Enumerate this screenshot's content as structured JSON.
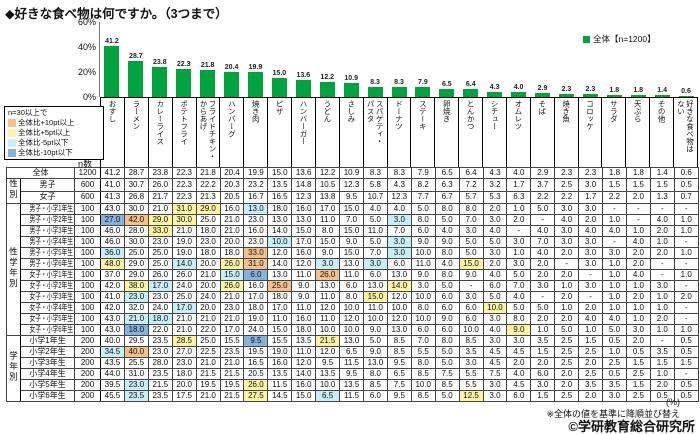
{
  "title": "◆好きな食べ物は何ですか。（3つまで）",
  "chart_data": {
    "type": "bar",
    "title": "好きな食べ物は何ですか。（3つまで）",
    "categories": [
      "おすし",
      "ラーメン",
      "カレーライス",
      "ポテトフライ",
      "フライドチキン・からあげ",
      "ハンバーグ",
      "焼き肉",
      "ピザ",
      "ハンバーガー",
      "うどん",
      "さしみ",
      "スパゲティ・パスタ",
      "ドーナツ",
      "ステーキ",
      "卵焼き",
      "とんかつ",
      "シチュー",
      "オムレツ",
      "そば",
      "焼き魚",
      "コロッケ",
      "サラダ",
      "天ぷら",
      "その他",
      "好きな食べ物はない"
    ],
    "values": [
      41.2,
      28.7,
      23.8,
      22.3,
      21.8,
      20.4,
      19.9,
      15.0,
      13.6,
      12.2,
      10.9,
      8.3,
      8.3,
      7.9,
      6.5,
      6.4,
      4.3,
      4.0,
      2.9,
      2.3,
      2.3,
      1.8,
      1.8,
      1.4,
      0.6
    ],
    "xlabel": "",
    "ylabel": "%",
    "ylim": [
      0,
      60
    ],
    "yticks": [
      "60%",
      "40%",
      "20%",
      "0%"
    ],
    "grid": false,
    "legend": {
      "label": "全体【n=1200】",
      "position": "top-right"
    },
    "bar_color": "#00a33e"
  },
  "highlight_legend": {
    "title": "n=30以上で",
    "items": [
      {
        "key": "o",
        "label": "全体比+10pt以上",
        "color": "#f4c08d"
      },
      {
        "key": "y",
        "label": "全体比+5pt以上",
        "color": "#fdf5a3"
      },
      {
        "key": "c",
        "label": "全体比-5pt以下",
        "color": "#c8eef8"
      },
      {
        "key": "b",
        "label": "全体比-10pt以下",
        "color": "#86b3de"
      }
    ]
  },
  "table": {
    "n_header": "n数",
    "columns": [
      {
        "lines": [
          "おすし"
        ]
      },
      {
        "lines": [
          "ラーメン"
        ]
      },
      {
        "lines": [
          "カレーライス"
        ]
      },
      {
        "lines": [
          "ポテトフライ"
        ]
      },
      {
        "lines": [
          "フライドチキン・",
          "からあげ"
        ]
      },
      {
        "lines": [
          "ハンバーグ"
        ]
      },
      {
        "lines": [
          "焼き肉"
        ]
      },
      {
        "lines": [
          "ピザ"
        ]
      },
      {
        "lines": [
          "ハンバーガー"
        ]
      },
      {
        "lines": [
          "うどん"
        ]
      },
      {
        "lines": [
          "さしみ"
        ]
      },
      {
        "lines": [
          "スパゲティ・",
          "パスタ"
        ]
      },
      {
        "lines": [
          "ドーナツ"
        ]
      },
      {
        "lines": [
          "ステーキ"
        ]
      },
      {
        "lines": [
          "卵焼き"
        ]
      },
      {
        "lines": [
          "とんかつ"
        ]
      },
      {
        "lines": [
          "シチュー"
        ]
      },
      {
        "lines": [
          "オムレツ"
        ]
      },
      {
        "lines": [
          "そば"
        ]
      },
      {
        "lines": [
          "焼き魚"
        ]
      },
      {
        "lines": [
          "コロッケ"
        ]
      },
      {
        "lines": [
          "サラダ"
        ]
      },
      {
        "lines": [
          "天ぷら"
        ]
      },
      {
        "lines": [
          "その他"
        ]
      },
      {
        "lines": [
          "好きな食べ物は",
          "ない"
        ]
      }
    ],
    "rows": [
      {
        "group": "",
        "label": "全体",
        "n": "1200",
        "values": [
          "41.2",
          "28.7",
          "23.8",
          "22.3",
          "21.8",
          "20.4",
          "19.9",
          "15.0",
          "13.6",
          "12.2",
          "10.9",
          "8.3",
          "8.3",
          "7.9",
          "6.5",
          "6.4",
          "4.3",
          "4.0",
          "2.9",
          "2.3",
          "2.3",
          "1.8",
          "1.8",
          "1.4",
          "0.6"
        ],
        "hl": {}
      },
      {
        "group": "性別",
        "label": "男子",
        "n": "600",
        "values": [
          "41.0",
          "30.7",
          "26.0",
          "22.3",
          "22.2",
          "20.3",
          "23.2",
          "13.5",
          "14.8",
          "10.5",
          "12.3",
          "5.8",
          "4.3",
          "8.2",
          "6.3",
          "7.2",
          "3.2",
          "1.7",
          "3.7",
          "2.5",
          "3.0",
          "1.5",
          "1.5",
          "1.5",
          "0.5"
        ],
        "hl": {}
      },
      {
        "group": "性別",
        "label": "女子",
        "n": "600",
        "values": [
          "41.3",
          "26.8",
          "21.7",
          "22.3",
          "21.3",
          "20.5",
          "16.7",
          "16.5",
          "12.3",
          "13.8",
          "9.5",
          "10.7",
          "12.3",
          "7.7",
          "6.7",
          "5.7",
          "5.3",
          "6.3",
          "2.2",
          "2.2",
          "1.7",
          "2.2",
          "2.0",
          "1.3",
          "0.7"
        ],
        "hl": {}
      },
      {
        "group": "性学年別",
        "label": "男子・小学1年生",
        "n": "100",
        "values": [
          "43.0",
          "30.0",
          "21.0",
          "31.0",
          "29.0",
          "16.0",
          "13.0",
          "18.0",
          "16.0",
          "17.0",
          "15.0",
          "4.0",
          "4.0",
          "5.0",
          "8.0",
          "8.0",
          "2.0",
          "1.0",
          "5.0",
          "3.0",
          "3.0",
          "-",
          "-",
          "-",
          "-"
        ],
        "hl": {
          "3": "y",
          "4": "y",
          "6": "c"
        }
      },
      {
        "group": "性学年別",
        "label": "男子・小学2年生",
        "n": "100",
        "values": [
          "27.0",
          "42.0",
          "29.0",
          "30.0",
          "25.0",
          "21.0",
          "23.0",
          "13.0",
          "13.0",
          "11.0",
          "7.0",
          "5.0",
          "3.0",
          "8.0",
          "5.0",
          "7.0",
          "3.0",
          "2.0",
          "-",
          "4.0",
          "2.0",
          "1.0",
          "-",
          "4.0",
          "1.0"
        ],
        "hl": {
          "0": "b",
          "1": "o",
          "2": "y",
          "3": "y",
          "12": "c"
        }
      },
      {
        "group": "性学年別",
        "label": "男子・小学3年生",
        "n": "100",
        "values": [
          "46.0",
          "28.0",
          "33.0",
          "21.0",
          "18.0",
          "21.0",
          "16.0",
          "14.0",
          "15.0",
          "8.0",
          "15.0",
          "11.0",
          "7.0",
          "6.0",
          "4.0",
          "3.0",
          "4.0",
          "-",
          "4.0",
          "3.0",
          "4.0",
          "4.0",
          "1.0",
          "2.0",
          "1.0"
        ],
        "hl": {
          "2": "y"
        }
      },
      {
        "group": "性学年別",
        "label": "男子・小学4年生",
        "n": "100",
        "values": [
          "46.0",
          "30.0",
          "23.0",
          "19.0",
          "23.0",
          "20.0",
          "23.0",
          "10.0",
          "17.0",
          "15.0",
          "9.0",
          "5.0",
          "3.0",
          "9.0",
          "9.0",
          "5.0",
          "5.0",
          "3.0",
          "7.0",
          "3.0",
          "3.0",
          "-",
          "4.0",
          "1.0",
          "-"
        ],
        "hl": {
          "7": "c",
          "12": "c"
        }
      },
      {
        "group": "性学年別",
        "label": "男子・小学5年生",
        "n": "100",
        "values": [
          "36.0",
          "25.0",
          "25.0",
          "19.0",
          "18.0",
          "18.0",
          "33.0",
          "12.0",
          "16.0",
          "9.0",
          "15.0",
          "7.0",
          "3.0",
          "10.0",
          "8.0",
          "5.0",
          "3.0",
          "1.0",
          "4.0",
          "2.0",
          "3.0",
          "3.0",
          "2.0",
          "2.0",
          "1.0"
        ],
        "hl": {
          "0": "c",
          "6": "o",
          "12": "c"
        }
      },
      {
        "group": "性学年別",
        "label": "男子・小学6年生",
        "n": "100",
        "values": [
          "48.0",
          "29.0",
          "25.0",
          "14.0",
          "20.0",
          "26.0",
          "31.0",
          "14.0",
          "12.0",
          "3.0",
          "13.0",
          "3.0",
          "6.0",
          "11.0",
          "4.0",
          "15.0",
          "2.0",
          "3.0",
          "2.0",
          "-",
          "3.0",
          "1.0",
          "2.0",
          "-",
          "-"
        ],
        "hl": {
          "0": "y",
          "3": "c",
          "5": "y",
          "6": "o",
          "9": "c",
          "11": "c",
          "15": "y"
        }
      },
      {
        "group": "性学年別",
        "label": "女子・小学1年生",
        "n": "100",
        "values": [
          "37.0",
          "29.0",
          "26.0",
          "26.0",
          "21.0",
          "15.0",
          "6.0",
          "13.0",
          "11.0",
          "26.0",
          "11.0",
          "6.0",
          "13.0",
          "9.0",
          "8.0",
          "9.0",
          "4.0",
          "5.0",
          "2.0",
          "2.0",
          "-",
          "1.0",
          "4.0",
          "-",
          "1.0"
        ],
        "hl": {
          "5": "c",
          "6": "b",
          "9": "o"
        }
      },
      {
        "group": "性学年別",
        "label": "女子・小学2年生",
        "n": "100",
        "values": [
          "42.0",
          "38.0",
          "17.0",
          "24.0",
          "20.0",
          "26.0",
          "16.0",
          "25.0",
          "9.0",
          "13.0",
          "6.0",
          "13.0",
          "14.0",
          "3.0",
          "5.0",
          "-",
          "6.0",
          "7.0",
          "3.0",
          "1.0",
          "3.0",
          "1.0",
          "1.0",
          "3.0",
          "-"
        ],
        "hl": {
          "1": "y",
          "2": "c",
          "5": "y",
          "7": "o",
          "12": "y"
        }
      },
      {
        "group": "性学年別",
        "label": "女子・小学3年生",
        "n": "100",
        "values": [
          "41.0",
          "23.0",
          "23.0",
          "25.0",
          "24.0",
          "21.0",
          "17.0",
          "18.0",
          "9.0",
          "11.0",
          "8.0",
          "15.0",
          "12.0",
          "10.0",
          "6.0",
          "3.0",
          "5.0",
          "4.0",
          "-",
          "2.0",
          "-",
          "1.0",
          "2.0",
          "1.0",
          "2.0"
        ],
        "hl": {
          "1": "c",
          "11": "y"
        }
      },
      {
        "group": "性学年別",
        "label": "女子・小学4年生",
        "n": "100",
        "values": [
          "42.0",
          "32.0",
          "24.0",
          "17.0",
          "20.0",
          "23.0",
          "18.0",
          "17.0",
          "11.0",
          "12.0",
          "10.0",
          "11.0",
          "10.0",
          "8.0",
          "6.0",
          "6.0",
          "10.0",
          "5.0",
          "5.0",
          "1.0",
          "2.0",
          "1.0",
          "1.0",
          "1.0",
          "-"
        ],
        "hl": {
          "3": "c",
          "16": "y"
        }
      },
      {
        "group": "性学年別",
        "label": "女子・小学5年生",
        "n": "100",
        "values": [
          "43.0",
          "21.0",
          "18.0",
          "21.0",
          "21.0",
          "21.0",
          "19.0",
          "11.0",
          "16.0",
          "11.0",
          "12.0",
          "10.0",
          "12.0",
          "10.0",
          "9.0",
          "6.0",
          "3.0",
          "8.0",
          "2.0",
          "2.0",
          "4.0",
          "4.0",
          "1.0",
          "2.0",
          "-"
        ],
        "hl": {
          "1": "c",
          "2": "c"
        }
      },
      {
        "group": "性学年別",
        "label": "女子・小学6年生",
        "n": "100",
        "values": [
          "43.0",
          "18.0",
          "22.0",
          "21.0",
          "22.0",
          "17.0",
          "24.0",
          "15.0",
          "18.0",
          "10.0",
          "10.0",
          "9.0",
          "13.0",
          "6.0",
          "6.0",
          "10.0",
          "4.0",
          "9.0",
          "1.0",
          "5.0",
          "1.0",
          "5.0",
          "3.0",
          "1.0",
          "1.0"
        ],
        "hl": {
          "1": "b",
          "17": "y"
        }
      },
      {
        "group": "学年別",
        "label": "小学1年生",
        "n": "200",
        "values": [
          "40.0",
          "29.5",
          "23.5",
          "28.5",
          "25.0",
          "15.5",
          "9.5",
          "15.5",
          "13.5",
          "21.5",
          "13.0",
          "5.0",
          "8.5",
          "7.0",
          "8.0",
          "8.5",
          "3.0",
          "3.0",
          "3.5",
          "2.5",
          "1.5",
          "0.5",
          "2.0",
          "-",
          "0.5"
        ],
        "hl": {
          "3": "y",
          "6": "b",
          "9": "y"
        }
      },
      {
        "group": "学年別",
        "label": "小学2年生",
        "n": "200",
        "values": [
          "34.5",
          "40.0",
          "23.0",
          "27.0",
          "22.5",
          "23.5",
          "19.5",
          "19.0",
          "11.0",
          "12.0",
          "6.5",
          "9.0",
          "8.5",
          "5.5",
          "5.0",
          "3.5",
          "4.5",
          "4.5",
          "1.5",
          "2.5",
          "2.5",
          "1.0",
          "0.5",
          "3.5",
          "0.5"
        ],
        "hl": {
          "0": "c",
          "1": "o"
        }
      },
      {
        "group": "学年別",
        "label": "小学3年生",
        "n": "200",
        "values": [
          "43.5",
          "25.5",
          "28.0",
          "23.0",
          "21.0",
          "21.0",
          "16.5",
          "16.0",
          "12.0",
          "9.5",
          "11.5",
          "13.0",
          "9.5",
          "8.0",
          "5.0",
          "3.0",
          "4.5",
          "2.0",
          "2.0",
          "2.5",
          "2.0",
          "2.5",
          "1.5",
          "1.5",
          "1.5"
        ],
        "hl": {}
      },
      {
        "group": "学年別",
        "label": "小学4年生",
        "n": "200",
        "values": [
          "44.0",
          "31.0",
          "23.5",
          "18.0",
          "21.5",
          "21.5",
          "20.5",
          "13.5",
          "14.0",
          "13.5",
          "9.5",
          "8.0",
          "6.5",
          "8.5",
          "7.5",
          "5.5",
          "7.5",
          "4.0",
          "6.0",
          "2.0",
          "2.5",
          "0.5",
          "2.5",
          "1.0",
          "-"
        ],
        "hl": {}
      },
      {
        "group": "学年別",
        "label": "小学5年生",
        "n": "200",
        "values": [
          "39.5",
          "23.0",
          "21.5",
          "20.0",
          "19.5",
          "19.5",
          "26.0",
          "11.5",
          "16.0",
          "10.0",
          "13.5",
          "8.5",
          "7.5",
          "10.0",
          "8.5",
          "5.5",
          "3.0",
          "4.5",
          "3.0",
          "2.0",
          "3.5",
          "3.5",
          "1.5",
          "2.0",
          "0.5"
        ],
        "hl": {
          "1": "c",
          "6": "y"
        }
      },
      {
        "group": "学年別",
        "label": "小学6年生",
        "n": "200",
        "values": [
          "45.5",
          "23.5",
          "23.5",
          "17.5",
          "21.0",
          "21.5",
          "27.5",
          "14.5",
          "15.0",
          "6.5",
          "11.5",
          "6.0",
          "9.5",
          "8.5",
          "5.0",
          "12.5",
          "3.0",
          "6.0",
          "1.5",
          "2.5",
          "2.0",
          "3.0",
          "2.5",
          "0.5",
          "0.5"
        ],
        "hl": {
          "1": "c",
          "6": "y",
          "9": "c",
          "15": "y"
        }
      }
    ]
  },
  "footer": {
    "percent_note": "(%)",
    "sort_note": "※全体の値を基準に降順並び替え",
    "copyright": "©学研教育総合研究所"
  }
}
